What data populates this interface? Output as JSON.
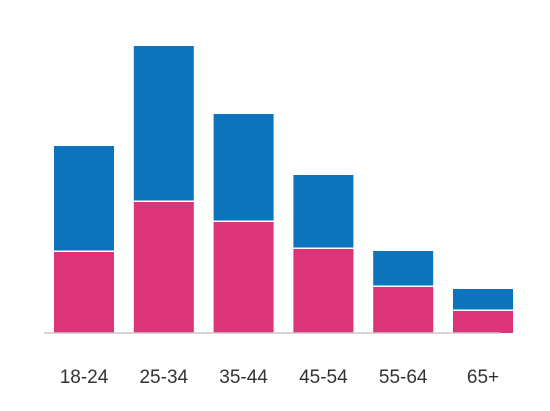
{
  "chart_data": {
    "type": "bar",
    "stacked": true,
    "categories": [
      "18-24",
      "25-34",
      "35-44",
      "45-54",
      "55-64",
      "65+"
    ],
    "series": [
      {
        "values": [
          81,
          131,
          111,
          84,
          46,
          22
        ]
      },
      {
        "values": [
          106,
          156,
          108,
          74,
          36,
          22
        ]
      }
    ],
    "ylim": [
      0,
      287
    ],
    "grid": false,
    "legend": "none",
    "colors": [
      "#dd3378",
      "#0b74bc"
    ]
  }
}
